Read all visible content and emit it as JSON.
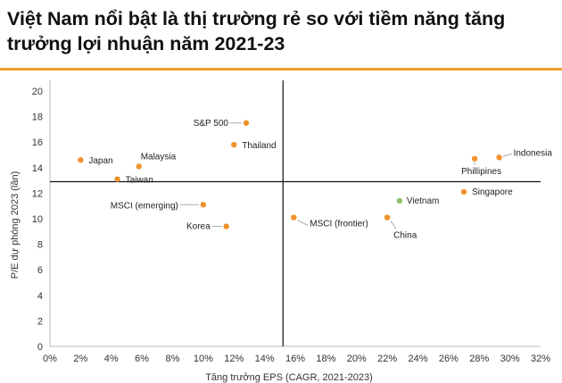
{
  "title": "Việt Nam nổi bật là thị trường rẻ so với tiềm năng tăng trưởng lợi nhuận năm 2021-23",
  "colors": {
    "accent": "#f0a030",
    "point": "#f0922b",
    "highlight": "#8dc26b"
  },
  "chart_data": {
    "type": "scatter",
    "xlabel": "Tăng trưởng EPS (CAGR, 2021-2023)",
    "ylabel": "P/E dự phóng 2023 (lần)",
    "xlim": [
      0,
      32
    ],
    "ylim": [
      0,
      21
    ],
    "x_ticks": [
      "0%",
      "2%",
      "4%",
      "6%",
      "8%",
      "10%",
      "12%",
      "14%",
      "16%",
      "18%",
      "20%",
      "22%",
      "24%",
      "26%",
      "28%",
      "30%",
      "32%"
    ],
    "y_ticks": [
      "0",
      "2",
      "4",
      "6",
      "8",
      "10",
      "12",
      "14",
      "16",
      "18",
      "20"
    ],
    "grid": false,
    "reference_lines": {
      "x": 15.2,
      "y": 12.9
    },
    "points": [
      {
        "name": "Japan",
        "x": 2.0,
        "y": 14.6
      },
      {
        "name": "Malaysia",
        "x": 5.8,
        "y": 14.1
      },
      {
        "name": "Taiwan",
        "x": 4.4,
        "y": 13.1
      },
      {
        "name": "S&P 500",
        "x": 12.8,
        "y": 17.5
      },
      {
        "name": "Thailand",
        "x": 12.0,
        "y": 15.8
      },
      {
        "name": "MSCI (emerging)",
        "x": 10.0,
        "y": 11.1
      },
      {
        "name": "Korea",
        "x": 11.5,
        "y": 9.4
      },
      {
        "name": "MSCI (frontier)",
        "x": 15.9,
        "y": 10.1
      },
      {
        "name": "Vietnam",
        "x": 22.8,
        "y": 11.4,
        "highlight": true
      },
      {
        "name": "China",
        "x": 22.0,
        "y": 10.1
      },
      {
        "name": "Singapore",
        "x": 27.0,
        "y": 12.1
      },
      {
        "name": "Phillipines",
        "x": 27.7,
        "y": 14.7
      },
      {
        "name": "Indonesia",
        "x": 29.3,
        "y": 14.8
      }
    ]
  }
}
